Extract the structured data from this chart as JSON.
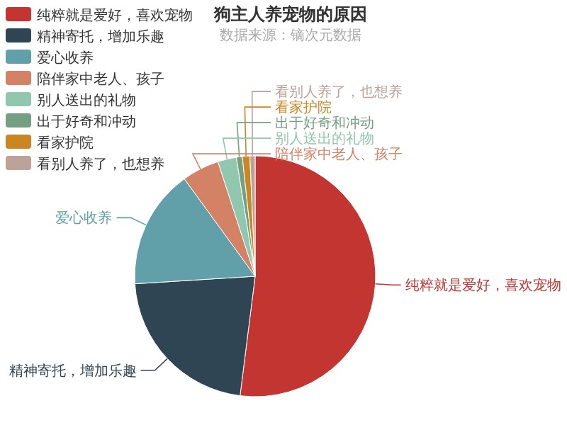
{
  "chart_data": {
    "type": "pie",
    "title": "狗主人养宠物的原因",
    "subtitle": "数据来源：镝次元数据",
    "legend": "top left",
    "categories": [
      "纯粹就是爱好，喜欢宠物",
      "精神寄托，增加乐趣",
      "爱心收养",
      "陪伴家中老人、孩子",
      "别人送出的礼物",
      "出于好奇和冲动",
      "看家护院",
      "看别人养了，也想养"
    ],
    "values": [
      52,
      22,
      16,
      5,
      2.5,
      0.8,
      1,
      0.7
    ],
    "colors": [
      "#c23531",
      "#2f4554",
      "#61a0a8",
      "#d48265",
      "#91c7ae",
      "#749f83",
      "#ca8622",
      "#bda29a"
    ]
  }
}
